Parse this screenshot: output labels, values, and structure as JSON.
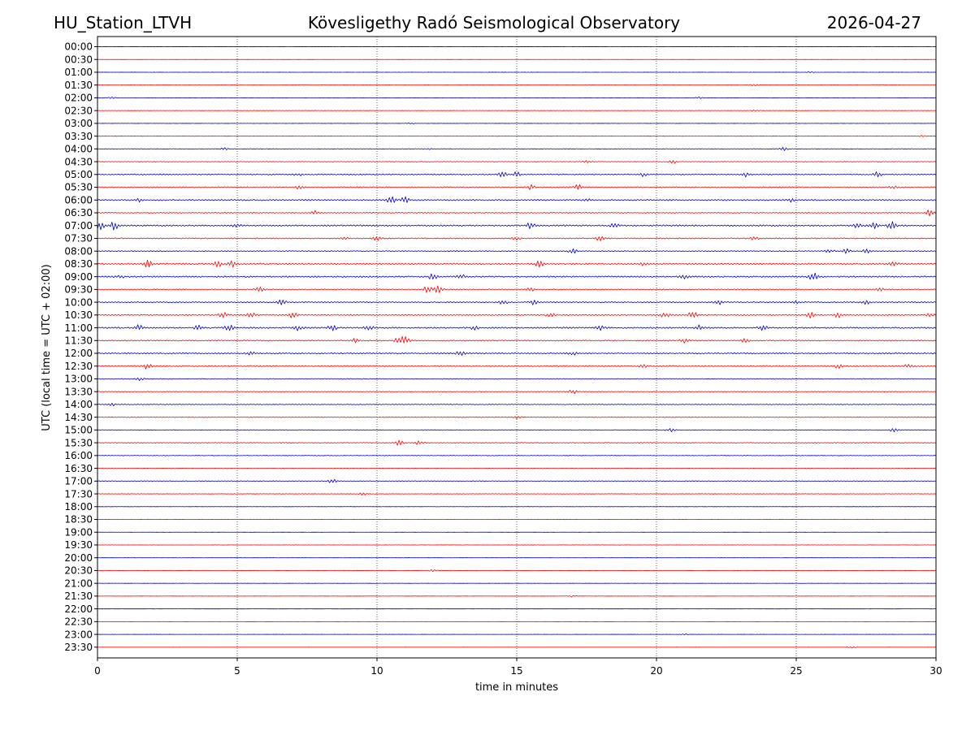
{
  "header": {
    "station": "HU_Station_LTVH",
    "observatory": "Kövesligethy Radó Seismological Observatory",
    "date": "2026-04-27"
  },
  "chart_data": {
    "type": "line",
    "title": "Kövesligethy Radó Seismological Observatory",
    "xlabel": "time in minutes",
    "ylabel": "UTC (local time = UTC + 02:00)",
    "xlim": [
      0,
      30
    ],
    "xticks": [
      0,
      5,
      10,
      15,
      20,
      25,
      30
    ],
    "grid_vertical_minutes": [
      5,
      10,
      15,
      20,
      25
    ],
    "trace_colors": [
      "#0000cc",
      "#ff0000"
    ],
    "rows": [
      {
        "label": "00:00",
        "amplitude": 0.1
      },
      {
        "label": "00:30",
        "amplitude": 0.1
      },
      {
        "label": "01:00",
        "amplitude": 0.15,
        "bursts": [
          [
            25.5,
            1.0
          ]
        ]
      },
      {
        "label": "01:30",
        "amplitude": 0.15,
        "bursts": [
          [
            23.5,
            1.2
          ]
        ]
      },
      {
        "label": "02:00",
        "amplitude": 0.2,
        "bursts": [
          [
            0.5,
            1.2
          ],
          [
            21.5,
            1.0
          ]
        ]
      },
      {
        "label": "02:30",
        "amplitude": 0.2,
        "bursts": [
          [
            23.5,
            0.9
          ]
        ]
      },
      {
        "label": "03:00",
        "amplitude": 0.15,
        "bursts": [
          [
            11.2,
            0.9
          ]
        ]
      },
      {
        "label": "03:30",
        "amplitude": 0.2,
        "bursts": [
          [
            29.5,
            1.0
          ]
        ]
      },
      {
        "label": "04:00",
        "amplitude": 0.4,
        "bursts": [
          [
            4.5,
            1.5
          ],
          [
            24.5,
            2.5
          ],
          [
            11.8,
            1.0
          ]
        ]
      },
      {
        "label": "04:30",
        "amplitude": 0.4,
        "bursts": [
          [
            17.5,
            1.5
          ],
          [
            20.6,
            1.8
          ]
        ]
      },
      {
        "label": "05:00",
        "amplitude": 0.7,
        "bursts": [
          [
            7.2,
            2.0
          ],
          [
            14.5,
            4.0
          ],
          [
            15.0,
            3.0
          ],
          [
            19.5,
            2.0
          ],
          [
            23.2,
            2.5
          ],
          [
            27.9,
            3.0
          ]
        ]
      },
      {
        "label": "05:30",
        "amplitude": 0.7,
        "bursts": [
          [
            7.2,
            2.0
          ],
          [
            15.5,
            2.8
          ],
          [
            17.2,
            3.0
          ],
          [
            28.5,
            2.0
          ]
        ]
      },
      {
        "label": "06:00",
        "amplitude": 0.8,
        "bursts": [
          [
            1.5,
            2.0
          ],
          [
            10.5,
            4.5
          ],
          [
            11.0,
            4.5
          ],
          [
            17.5,
            2.5
          ],
          [
            24.8,
            2.0
          ]
        ]
      },
      {
        "label": "06:30",
        "amplitude": 0.6,
        "bursts": [
          [
            7.8,
            2.5
          ],
          [
            29.8,
            4.5
          ]
        ]
      },
      {
        "label": "07:00",
        "amplitude": 0.9,
        "bursts": [
          [
            0.1,
            5.0
          ],
          [
            0.6,
            5.0
          ],
          [
            5.0,
            2.0
          ],
          [
            15.5,
            4.0
          ],
          [
            18.5,
            3.0
          ],
          [
            27.2,
            4.5
          ],
          [
            27.8,
            4.0
          ],
          [
            28.4,
            4.5
          ]
        ]
      },
      {
        "label": "07:30",
        "amplitude": 0.7,
        "bursts": [
          [
            8.8,
            2.0
          ],
          [
            10.0,
            2.5
          ],
          [
            15.0,
            2.0
          ],
          [
            18.0,
            3.5
          ],
          [
            23.5,
            2.0
          ]
        ]
      },
      {
        "label": "08:00",
        "amplitude": 0.6,
        "bursts": [
          [
            17.0,
            3.0
          ],
          [
            26.2,
            2.5
          ],
          [
            26.8,
            3.0
          ],
          [
            27.5,
            2.5
          ]
        ]
      },
      {
        "label": "08:30",
        "amplitude": 0.9,
        "bursts": [
          [
            1.8,
            4.0
          ],
          [
            4.3,
            3.5
          ],
          [
            4.8,
            3.5
          ],
          [
            15.8,
            4.0
          ],
          [
            19.5,
            2.5
          ],
          [
            28.5,
            2.5
          ]
        ]
      },
      {
        "label": "09:00",
        "amplitude": 0.9,
        "bursts": [
          [
            0.8,
            2.0
          ],
          [
            12.0,
            4.5
          ],
          [
            13.0,
            3.0
          ],
          [
            21.0,
            2.5
          ],
          [
            25.6,
            5.0
          ]
        ]
      },
      {
        "label": "09:30",
        "amplitude": 0.7,
        "bursts": [
          [
            5.8,
            4.0
          ],
          [
            11.8,
            5.0
          ],
          [
            12.2,
            5.0
          ],
          [
            15.5,
            2.0
          ],
          [
            28.0,
            2.0
          ]
        ]
      },
      {
        "label": "10:00",
        "amplitude": 0.7,
        "bursts": [
          [
            6.6,
            3.0
          ],
          [
            14.5,
            3.5
          ],
          [
            15.6,
            3.0
          ],
          [
            22.2,
            3.0
          ],
          [
            25.0,
            2.5
          ],
          [
            27.5,
            2.5
          ]
        ]
      },
      {
        "label": "10:30",
        "amplitude": 0.8,
        "bursts": [
          [
            4.5,
            3.0
          ],
          [
            5.5,
            3.0
          ],
          [
            7.0,
            3.5
          ],
          [
            16.2,
            3.0
          ],
          [
            20.3,
            3.0
          ],
          [
            21.3,
            4.5
          ],
          [
            25.5,
            3.5
          ],
          [
            26.5,
            3.5
          ],
          [
            29.8,
            3.0
          ]
        ]
      },
      {
        "label": "11:00",
        "amplitude": 0.9,
        "bursts": [
          [
            1.5,
            3.5
          ],
          [
            3.6,
            3.5
          ],
          [
            4.7,
            4.0
          ],
          [
            7.2,
            3.0
          ],
          [
            8.4,
            4.0
          ],
          [
            9.7,
            3.5
          ],
          [
            13.5,
            2.5
          ],
          [
            18.0,
            2.5
          ],
          [
            21.5,
            3.0
          ],
          [
            23.8,
            3.0
          ]
        ]
      },
      {
        "label": "11:30",
        "amplitude": 0.7,
        "bursts": [
          [
            9.2,
            3.0
          ],
          [
            10.8,
            5.0
          ],
          [
            11.0,
            4.5
          ],
          [
            21.0,
            2.5
          ],
          [
            23.2,
            3.0
          ]
        ]
      },
      {
        "label": "12:00",
        "amplitude": 0.8,
        "bursts": [
          [
            5.5,
            3.0
          ],
          [
            13.0,
            3.5
          ],
          [
            17.0,
            2.0
          ]
        ]
      },
      {
        "label": "12:30",
        "amplitude": 0.7,
        "bursts": [
          [
            1.8,
            4.0
          ],
          [
            19.5,
            2.0
          ],
          [
            26.5,
            2.5
          ],
          [
            29.0,
            2.5
          ]
        ]
      },
      {
        "label": "13:00",
        "amplitude": 0.5,
        "bursts": [
          [
            1.5,
            2.0
          ]
        ]
      },
      {
        "label": "13:30",
        "amplitude": 0.45,
        "bursts": [
          [
            17.0,
            3.0
          ]
        ]
      },
      {
        "label": "14:00",
        "amplitude": 0.5,
        "bursts": [
          [
            0.5,
            2.0
          ]
        ]
      },
      {
        "label": "14:30",
        "amplitude": 0.45,
        "bursts": [
          [
            15.0,
            2.0
          ]
        ]
      },
      {
        "label": "15:00",
        "amplitude": 0.45,
        "bursts": [
          [
            20.5,
            2.0
          ],
          [
            28.5,
            3.0
          ]
        ]
      },
      {
        "label": "15:30",
        "amplitude": 0.5,
        "bursts": [
          [
            10.8,
            3.5
          ],
          [
            11.5,
            2.5
          ]
        ]
      },
      {
        "label": "16:00",
        "amplitude": 0.35
      },
      {
        "label": "16:30",
        "amplitude": 0.3
      },
      {
        "label": "17:00",
        "amplitude": 0.45,
        "bursts": [
          [
            8.4,
            3.0
          ]
        ]
      },
      {
        "label": "17:30",
        "amplitude": 0.3,
        "bursts": [
          [
            9.5,
            1.5
          ]
        ]
      },
      {
        "label": "18:00",
        "amplitude": 0.2
      },
      {
        "label": "18:30",
        "amplitude": 0.2
      },
      {
        "label": "19:00",
        "amplitude": 0.15
      },
      {
        "label": "19:30",
        "amplitude": 0.2
      },
      {
        "label": "20:00",
        "amplitude": 0.15
      },
      {
        "label": "20:30",
        "amplitude": 0.2,
        "bursts": [
          [
            12.0,
            1.5
          ]
        ]
      },
      {
        "label": "21:00",
        "amplitude": 0.15
      },
      {
        "label": "21:30",
        "amplitude": 0.15,
        "bursts": [
          [
            17.0,
            1.2
          ]
        ]
      },
      {
        "label": "22:00",
        "amplitude": 0.1
      },
      {
        "label": "22:30",
        "amplitude": 0.1
      },
      {
        "label": "23:00",
        "amplitude": 0.15,
        "bursts": [
          [
            21.0,
            1.0
          ]
        ]
      },
      {
        "label": "23:30",
        "amplitude": 0.1,
        "bursts": [
          [
            27.0,
            1.0
          ]
        ]
      }
    ]
  }
}
